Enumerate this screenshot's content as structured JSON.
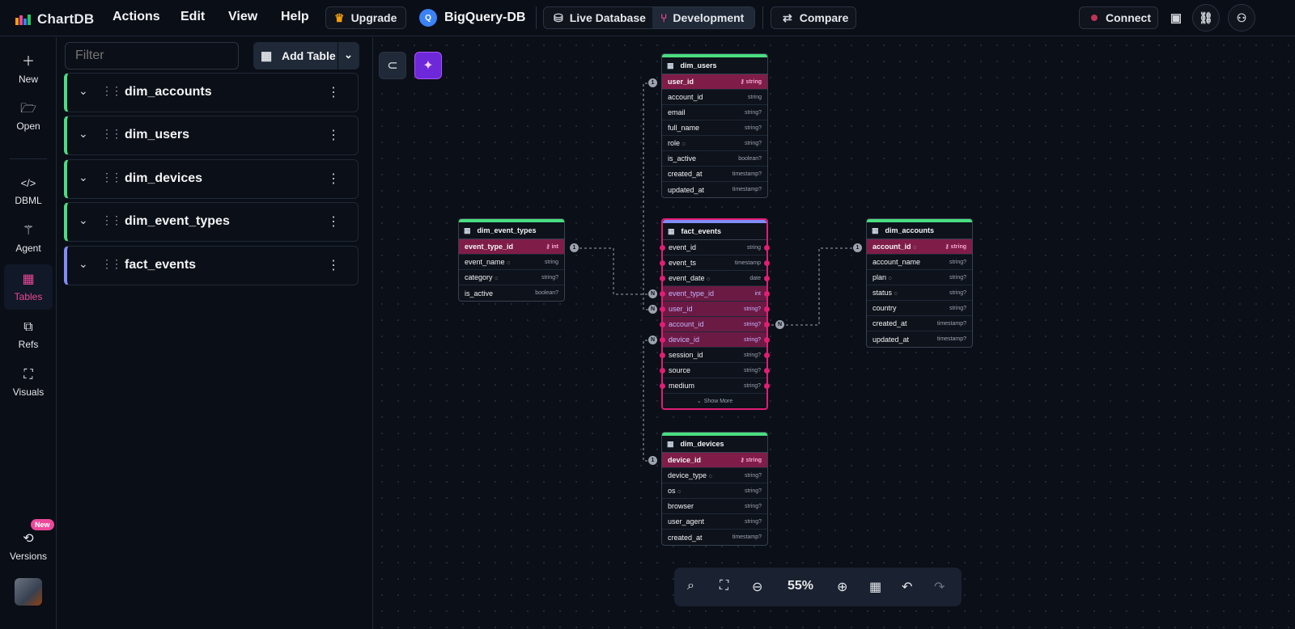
{
  "app": {
    "name": "ChartDB"
  },
  "menu": [
    "Actions",
    "Edit",
    "View",
    "Help"
  ],
  "header": {
    "upgrade_label": "Upgrade",
    "db_name": "BigQuery-DB",
    "branches": {
      "live": "Live Database",
      "dev": "Development"
    },
    "compare_label": "Compare",
    "connect_label": "Connect"
  },
  "sidebar": {
    "items": [
      {
        "label": "New",
        "icon": "plus-icon"
      },
      {
        "label": "Open",
        "icon": "folder-icon"
      },
      {
        "label": "DBML",
        "icon": "code-icon"
      },
      {
        "label": "Agent",
        "icon": "wand-icon"
      },
      {
        "label": "Tables",
        "icon": "table-icon"
      },
      {
        "label": "Refs",
        "icon": "refs-icon"
      },
      {
        "label": "Visuals",
        "icon": "visuals-icon"
      },
      {
        "label": "Versions",
        "icon": "history-icon"
      }
    ],
    "versions_badge": "New"
  },
  "panel": {
    "filter_placeholder": "Filter",
    "add_table_label": "Add Table",
    "tables": [
      "dim_accounts",
      "dim_users",
      "dim_devices",
      "dim_event_types",
      "fact_events"
    ]
  },
  "colors": {
    "accent": "#ec4899",
    "dim_color": "#4ade80",
    "fact_color": "#818cf8",
    "pk_bg": "#7f1d48"
  },
  "diagram": {
    "dim_users": {
      "name": "dim_users",
      "columns": [
        {
          "name": "user_id",
          "type": "string"
        },
        {
          "name": "account_id",
          "type": "string"
        },
        {
          "name": "email",
          "type": "string?"
        },
        {
          "name": "full_name",
          "type": "string?"
        },
        {
          "name": "role",
          "type": "string?"
        },
        {
          "name": "is_active",
          "type": "boolean?"
        },
        {
          "name": "created_at",
          "type": "timestamp?"
        },
        {
          "name": "updated_at",
          "type": "timestamp?"
        }
      ]
    },
    "dim_event_types": {
      "name": "dim_event_types",
      "columns": [
        {
          "name": "event_type_id",
          "type": "int"
        },
        {
          "name": "event_name",
          "type": "string"
        },
        {
          "name": "category",
          "type": "string?"
        },
        {
          "name": "is_active",
          "type": "boolean?"
        }
      ]
    },
    "fact_events": {
      "name": "fact_events",
      "columns": [
        {
          "name": "event_id",
          "type": "string"
        },
        {
          "name": "event_ts",
          "type": "timestamp"
        },
        {
          "name": "event_date",
          "type": "date"
        },
        {
          "name": "event_type_id",
          "type": "int"
        },
        {
          "name": "user_id",
          "type": "string?"
        },
        {
          "name": "account_id",
          "type": "string?"
        },
        {
          "name": "device_id",
          "type": "string?"
        },
        {
          "name": "session_id",
          "type": "string?"
        },
        {
          "name": "source",
          "type": "string?"
        },
        {
          "name": "medium",
          "type": "string?"
        }
      ],
      "show_more": "Show More"
    },
    "dim_accounts": {
      "name": "dim_accounts",
      "columns": [
        {
          "name": "account_id",
          "type": "string"
        },
        {
          "name": "account_name",
          "type": "string?"
        },
        {
          "name": "plan",
          "type": "string?"
        },
        {
          "name": "status",
          "type": "string?"
        },
        {
          "name": "country",
          "type": "string?"
        },
        {
          "name": "created_at",
          "type": "timestamp?"
        },
        {
          "name": "updated_at",
          "type": "timestamp?"
        }
      ]
    },
    "dim_devices": {
      "name": "dim_devices",
      "columns": [
        {
          "name": "device_id",
          "type": "string"
        },
        {
          "name": "device_type",
          "type": "string?"
        },
        {
          "name": "os",
          "type": "string?"
        },
        {
          "name": "browser",
          "type": "string?"
        },
        {
          "name": "user_agent",
          "type": "string?"
        },
        {
          "name": "created_at",
          "type": "timestamp?"
        }
      ]
    },
    "cardinality": {
      "one": "1",
      "many": "N"
    }
  },
  "zoom": {
    "level": "55%"
  }
}
